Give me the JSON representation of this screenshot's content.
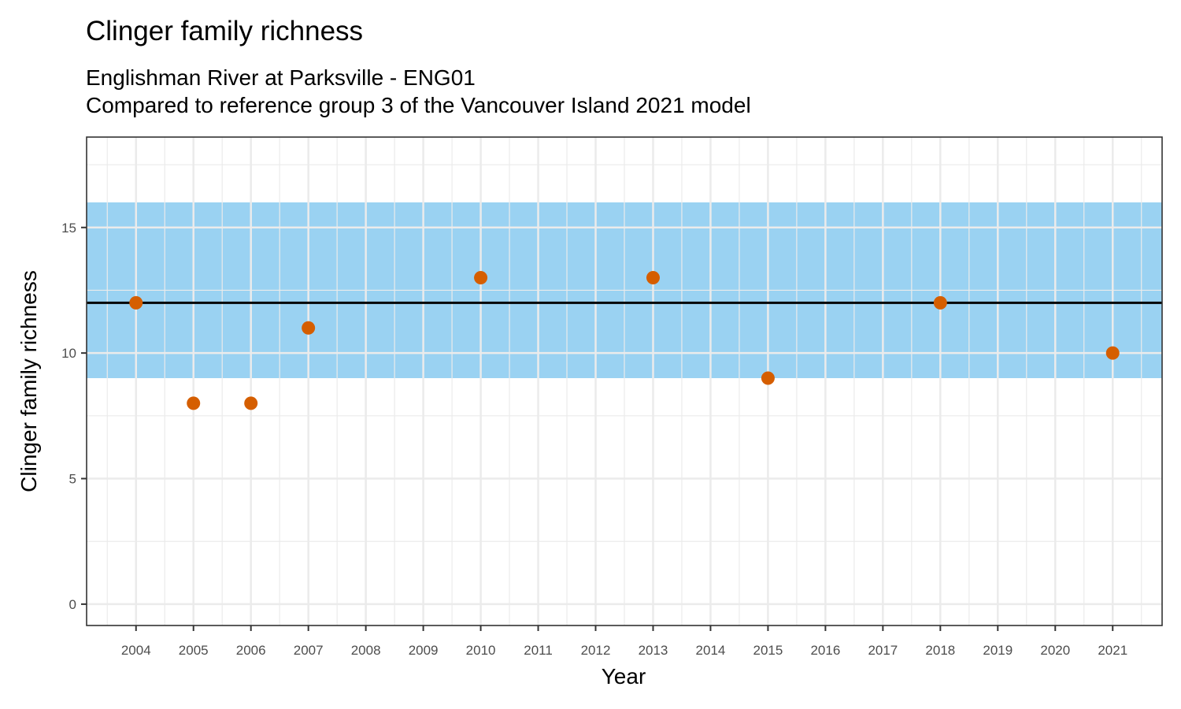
{
  "chart_data": {
    "type": "scatter",
    "title": "Clinger family richness",
    "subtitle": [
      "Englishman River at Parksville - ENG01",
      "Compared to reference group 3 of the Vancouver Island 2021 model"
    ],
    "xlabel": "Year",
    "ylabel": "Clinger family richness",
    "x_ticks": [
      2004,
      2005,
      2006,
      2007,
      2008,
      2009,
      2010,
      2011,
      2012,
      2013,
      2014,
      2015,
      2016,
      2017,
      2018,
      2019,
      2020,
      2021
    ],
    "y_ticks": [
      0,
      5,
      10,
      15
    ],
    "xlim": [
      2003.14,
      2021.86
    ],
    "ylim": [
      -0.85,
      18.6
    ],
    "grid": true,
    "reference_band": {
      "ymin": 9,
      "ymax": 16,
      "color": "#56B4E9"
    },
    "reference_line": {
      "y": 12,
      "color": "#000000"
    },
    "point_color": "#D55E00",
    "points": [
      {
        "x": 2004,
        "y": 12
      },
      {
        "x": 2005,
        "y": 8
      },
      {
        "x": 2006,
        "y": 8
      },
      {
        "x": 2007,
        "y": 11
      },
      {
        "x": 2010,
        "y": 13
      },
      {
        "x": 2013,
        "y": 13
      },
      {
        "x": 2015,
        "y": 9
      },
      {
        "x": 2018,
        "y": 12
      },
      {
        "x": 2021,
        "y": 10
      }
    ]
  }
}
